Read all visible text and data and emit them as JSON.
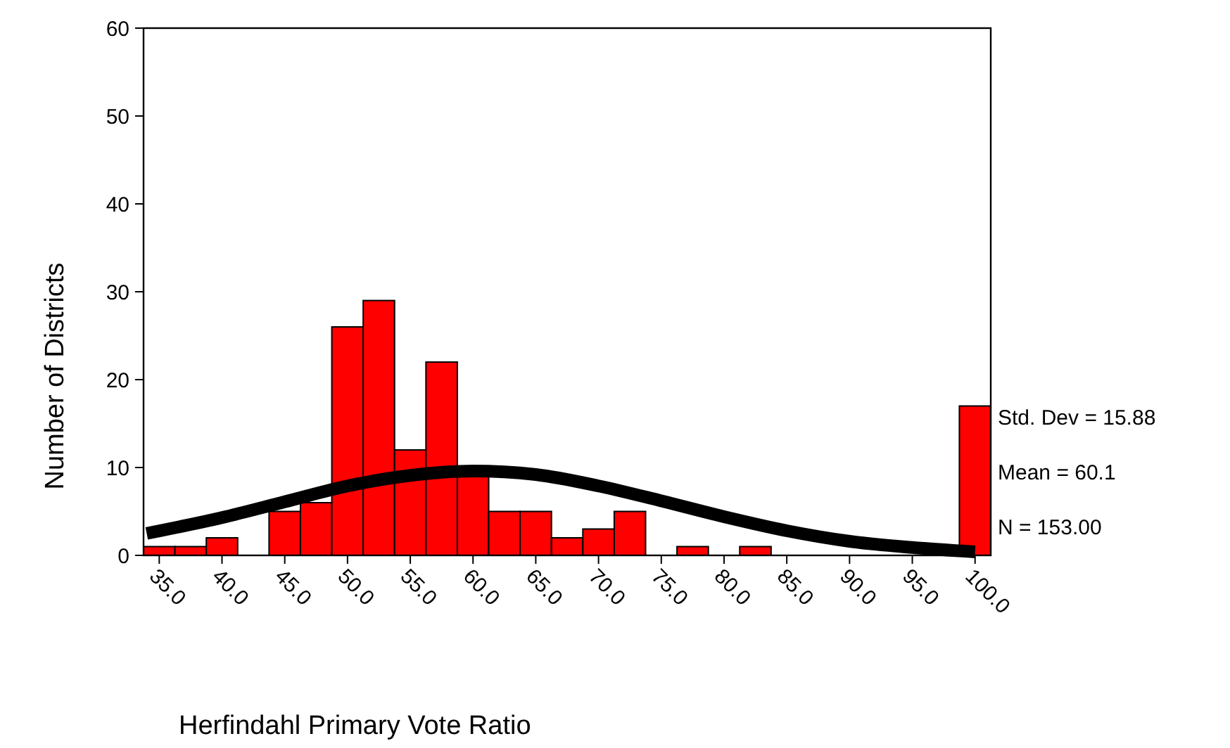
{
  "chart_data": {
    "type": "histogram",
    "xlabel": "Herfindahl Primary Vote Ratio",
    "ylabel": "Number of Districts",
    "bins": [
      33.75,
      36.25,
      38.75,
      41.25,
      43.75,
      46.25,
      48.75,
      51.25,
      53.75,
      56.25,
      58.75,
      61.25,
      63.75,
      66.25,
      68.75,
      71.25,
      73.75,
      76.25,
      78.75,
      81.25,
      83.75,
      86.25,
      88.75,
      91.25,
      93.75,
      96.25,
      98.75,
      101.25
    ],
    "series": [
      {
        "color": "#ff0000",
        "values": [
          1,
          1,
          2,
          0,
          5,
          6,
          26,
          29,
          12,
          22,
          9,
          5,
          5,
          2,
          3,
          5,
          0,
          1,
          0,
          1,
          0,
          0,
          0,
          0,
          0,
          0,
          17
        ]
      },
      {
        "type": "line",
        "color": "#000000",
        "x": [
          34,
          40,
          45,
          50,
          55,
          60,
          65,
          70,
          75,
          80,
          85,
          90,
          95,
          100
        ],
        "values": [
          2.5,
          4.3,
          6.1,
          7.9,
          9.1,
          9.6,
          9.2,
          7.9,
          6.2,
          4.4,
          2.8,
          1.6,
          0.9,
          0.4
        ]
      }
    ],
    "xlim": [
      33.75,
      101.25
    ],
    "xticks": [
      {
        "value": 35,
        "label": "35.0"
      },
      {
        "value": 40,
        "label": "40.0"
      },
      {
        "value": 45,
        "label": "45.0"
      },
      {
        "value": 50,
        "label": "50.0"
      },
      {
        "value": 55,
        "label": "55.0"
      },
      {
        "value": 60,
        "label": "60.0"
      },
      {
        "value": 65,
        "label": "65.0"
      },
      {
        "value": 70,
        "label": "70.0"
      },
      {
        "value": 75,
        "label": "75.0"
      },
      {
        "value": 80,
        "label": "80.0"
      },
      {
        "value": 85,
        "label": "85.0"
      },
      {
        "value": 90,
        "label": "90.0"
      },
      {
        "value": 95,
        "label": "95.0"
      },
      {
        "value": 100,
        "label": "100.0"
      }
    ],
    "ylim": [
      0,
      60
    ],
    "yticks": [
      0,
      10,
      20,
      30,
      40,
      50,
      60
    ],
    "grid": false,
    "annotations": [
      "Std. Dev = 15.88",
      "Mean = 60.1",
      "N = 153.00"
    ]
  }
}
